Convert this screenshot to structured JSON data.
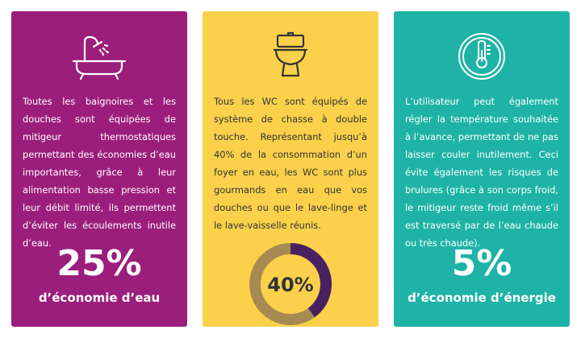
{
  "cards": [
    {
      "id": "bath",
      "icon": "bathtub-shower-icon",
      "text": "Toutes les baignoires et les douches sont équipées de mitigeur thermostatiques permettant des économies d’eau importantes, grâce à leur alimentation basse pression et leur débit limité, ils permettent d’éviter les écoulements inutile d’eau.",
      "stat_value": "25%",
      "stat_label": "d’économie d’eau",
      "color": "#9c1e7c"
    },
    {
      "id": "wc",
      "icon": "toilet-icon",
      "text": "Tous les WC sont équipés de système de chasse à double touche. Représentant jusqu’à 40% de la consommation d’un foyer en eau, les WC sont plus gourmands en eau que vos douches ou que le lave-linge et le lave-vaisselle réunis.",
      "stat_value": "40%",
      "stat_fraction": 0.4,
      "color": "#fbd14b"
    },
    {
      "id": "temp",
      "icon": "thermometer-icon",
      "text": "L’utilisateur peut également régler la température souhaitée à l’avance, permettant de ne pas laisser couler inutilement. Ceci évite également les risques de brulures (grâce à son corps froid, le mitigeur reste froid même s’il est traversé par de l’eau chaude ou très chaude).",
      "stat_value": "5%",
      "stat_label": "d’économie d’énergie",
      "color": "#1eb3a6"
    }
  ],
  "colors": {
    "donut_fill": "#4a2160",
    "donut_track": "#a78a52",
    "wc_text": "#333333"
  }
}
